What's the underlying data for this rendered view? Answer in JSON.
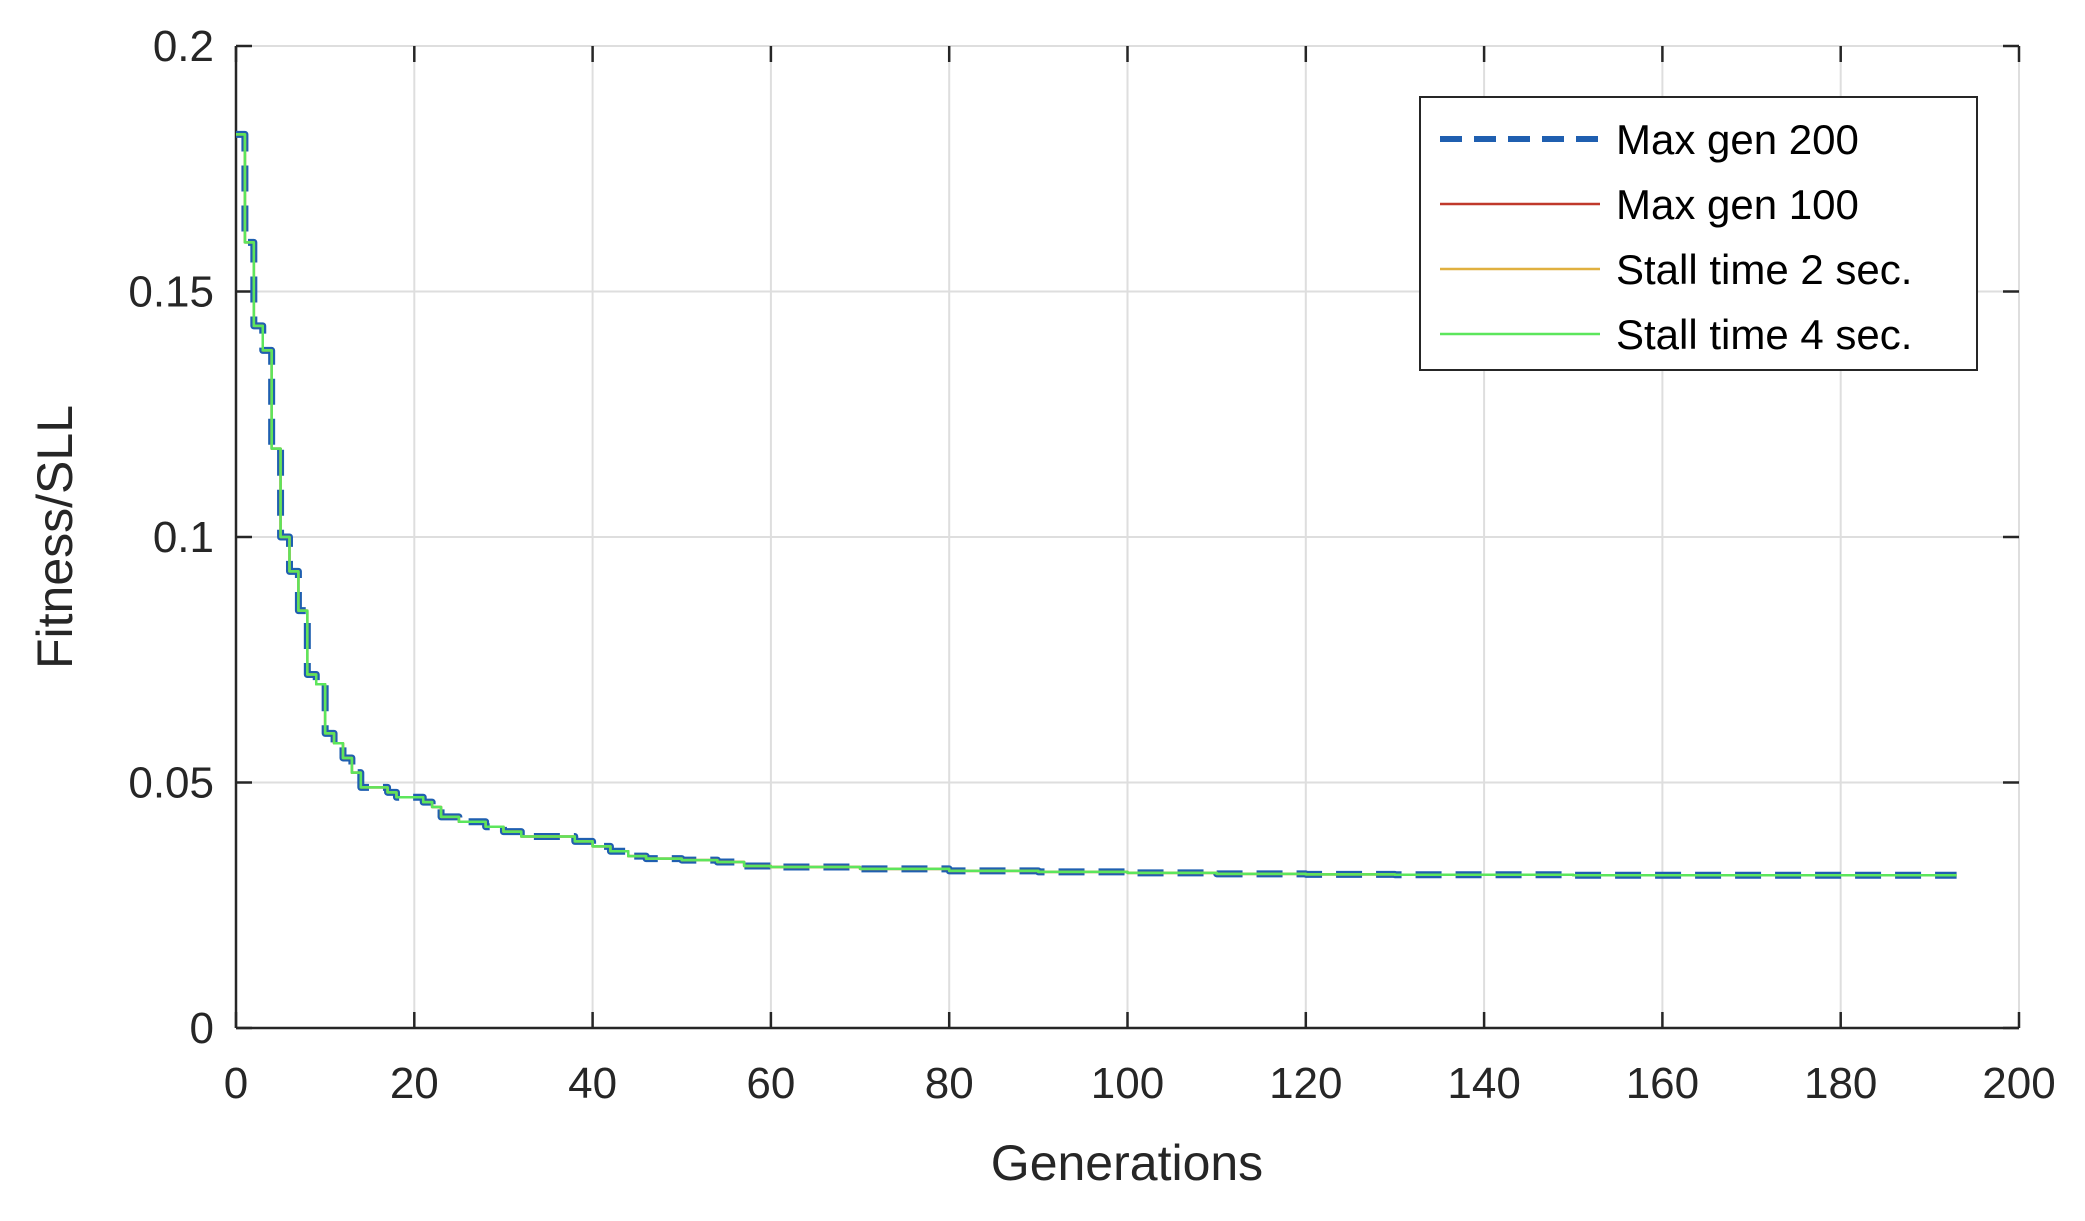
{
  "chart_data": {
    "type": "line",
    "title": "",
    "xlabel": "Generations",
    "ylabel": "Fitness/SLL",
    "xlim": [
      0,
      200
    ],
    "ylim": [
      0,
      0.2
    ],
    "xticks": [
      0,
      20,
      40,
      60,
      80,
      100,
      120,
      140,
      160,
      180,
      200
    ],
    "yticks": [
      0,
      0.05,
      0.1,
      0.15,
      0.2
    ],
    "xtick_labels": [
      "0",
      "20",
      "40",
      "60",
      "80",
      "100",
      "120",
      "140",
      "160",
      "180",
      "200"
    ],
    "ytick_labels": [
      "0",
      "0.05",
      "0.1",
      "0.15",
      "0.2"
    ],
    "grid": true,
    "legend_position": "top-right",
    "x": [
      0,
      1,
      2,
      3,
      4,
      5,
      6,
      7,
      8,
      9,
      10,
      11,
      12,
      13,
      14,
      15,
      16,
      17,
      18,
      19,
      20,
      21,
      22,
      23,
      24,
      25,
      26,
      28,
      30,
      32,
      34,
      36,
      38,
      40,
      42,
      44,
      46,
      50,
      54,
      57,
      60,
      70,
      80,
      90,
      100,
      110,
      120,
      130,
      140,
      150,
      160,
      170,
      180,
      193
    ],
    "series": [
      {
        "name": "Max gen 200",
        "color": "#1f5fb0",
        "style": "dashed",
        "values": [
          0.182,
          0.16,
          0.143,
          0.138,
          0.118,
          0.1,
          0.093,
          0.085,
          0.072,
          0.07,
          0.06,
          0.058,
          0.055,
          0.052,
          0.049,
          0.049,
          0.049,
          0.048,
          0.047,
          0.047,
          0.047,
          0.046,
          0.045,
          0.043,
          0.043,
          0.042,
          0.042,
          0.041,
          0.04,
          0.039,
          0.039,
          0.039,
          0.038,
          0.037,
          0.036,
          0.035,
          0.0345,
          0.0342,
          0.0338,
          0.033,
          0.0328,
          0.0324,
          0.032,
          0.0318,
          0.0316,
          0.0314,
          0.0313,
          0.0312,
          0.0312,
          0.0311,
          0.0311,
          0.0311,
          0.0311,
          0.0311
        ]
      },
      {
        "name": "Max gen 100",
        "color": "#c0392b",
        "style": "solid",
        "values": [
          0.182,
          0.16,
          0.143,
          0.138,
          0.118,
          0.1,
          0.093,
          0.085,
          0.072,
          0.07,
          0.06,
          0.058,
          0.055,
          0.052,
          0.049,
          0.049,
          0.049,
          0.048,
          0.047,
          0.047,
          0.047,
          0.046,
          0.045,
          0.043,
          0.043,
          0.042,
          0.042,
          0.041,
          0.04,
          0.039,
          0.039,
          0.039,
          0.038,
          0.037,
          0.036,
          0.035,
          0.0345,
          0.0342,
          0.0338,
          0.033,
          0.0328,
          0.0324,
          0.032,
          0.0318,
          0.0316,
          0.0314,
          0.0313,
          0.0312,
          0.0312,
          0.0311,
          0.0311,
          0.0311,
          0.0311,
          0.0311
        ]
      },
      {
        "name": "Stall time 2 sec.",
        "color": "#e0b040",
        "style": "solid",
        "values": [
          0.182,
          0.16,
          0.143,
          0.138,
          0.118,
          0.1,
          0.093,
          0.085,
          0.072,
          0.07,
          0.06,
          0.058,
          0.055,
          0.052,
          0.049,
          0.049,
          0.049,
          0.048,
          0.047,
          0.047,
          0.047,
          0.046,
          0.045,
          0.043,
          0.043,
          0.042,
          0.042,
          0.041,
          0.04,
          0.039,
          0.039,
          0.039,
          0.038,
          0.037,
          0.036,
          0.035,
          0.0345,
          0.0342,
          0.0338,
          0.033,
          0.0328,
          0.0324,
          0.032,
          0.0318,
          0.0316,
          0.0314,
          0.0313,
          0.0312,
          0.0312,
          0.0311,
          0.0311,
          0.0311,
          0.0311,
          0.0311
        ]
      },
      {
        "name": "Stall time 4 sec.",
        "color": "#5ce65c",
        "style": "solid",
        "values": [
          0.182,
          0.16,
          0.143,
          0.138,
          0.118,
          0.1,
          0.093,
          0.085,
          0.072,
          0.07,
          0.06,
          0.058,
          0.055,
          0.052,
          0.049,
          0.049,
          0.049,
          0.048,
          0.047,
          0.047,
          0.047,
          0.046,
          0.045,
          0.043,
          0.043,
          0.042,
          0.042,
          0.041,
          0.04,
          0.039,
          0.039,
          0.039,
          0.038,
          0.037,
          0.036,
          0.035,
          0.0345,
          0.0342,
          0.0338,
          0.033,
          0.0328,
          0.0324,
          0.032,
          0.0318,
          0.0316,
          0.0314,
          0.0313,
          0.0312,
          0.0312,
          0.0311,
          0.0311,
          0.0311,
          0.0311,
          0.0311
        ]
      }
    ]
  }
}
